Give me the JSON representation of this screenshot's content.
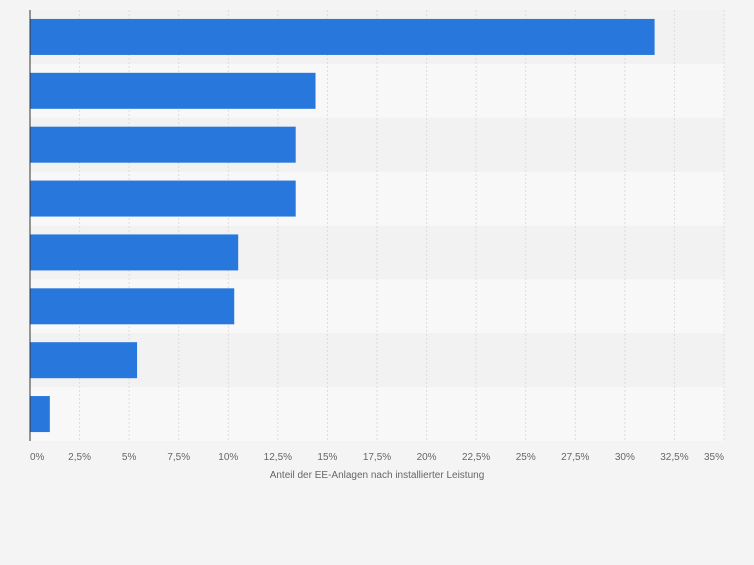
{
  "colors": {
    "page_bg": "#f4f4f4",
    "band_dark": "#f2f2f2",
    "band_light": "#f8f8f8",
    "bar": "#2877dd",
    "grid": "#dcdcdc",
    "axis": "#333333",
    "tick_text": "#666666"
  },
  "chart_data": {
    "type": "bar",
    "orientation": "horizontal",
    "title": "",
    "xlabel": "Anteil der EE-Anlagen nach installierter Leistung",
    "ylabel": "",
    "xlim": [
      0,
      35
    ],
    "xticks": [
      0,
      2.5,
      5,
      7.5,
      10,
      12.5,
      15,
      17.5,
      20,
      22.5,
      25,
      27.5,
      30,
      32.5,
      35
    ],
    "xtick_labels": [
      "0%",
      "2,5%",
      "5%",
      "7,5%",
      "10%",
      "12,5%",
      "15%",
      "17,5%",
      "20%",
      "22,5%",
      "25%",
      "27,5%",
      "30%",
      "32,5%",
      "35%"
    ],
    "categories": [
      "",
      "",
      "",
      "",
      "",
      "",
      "",
      ""
    ],
    "values": [
      31.5,
      14.4,
      13.4,
      13.4,
      10.5,
      10.3,
      5.4,
      1.0
    ],
    "grid": true,
    "legend": "none"
  }
}
